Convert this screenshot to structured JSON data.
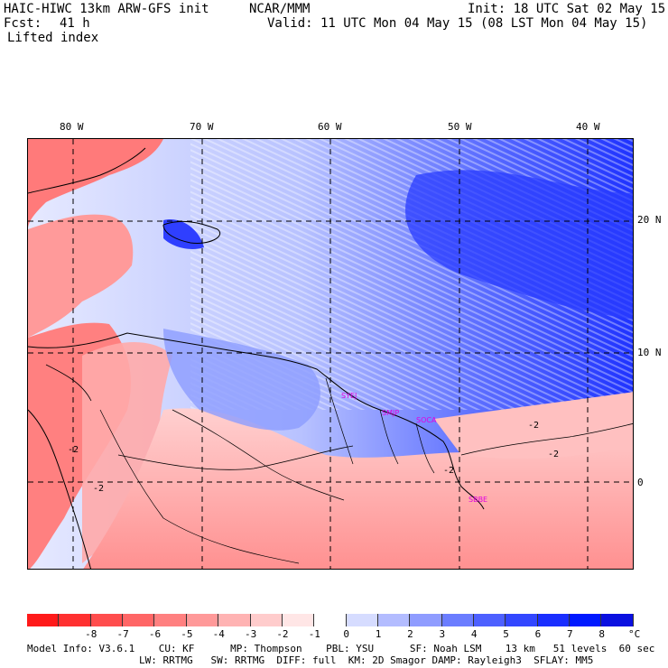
{
  "header": {
    "model": "HAIC-HIWC 13km ARW-GFS init",
    "agency": "NCAR/MMM",
    "init": "Init: 18 UTC Sat 02 May 15",
    "fcst_label": "Fcst:",
    "fcst_value": "41 h",
    "valid": "Valid: 11 UTC Mon 04 May 15 (08 LST Mon 04 May 15)",
    "field": "Lifted index"
  },
  "axes": {
    "lon_labels": [
      "80 W",
      "70 W",
      "60 W",
      "50 W",
      "40 W"
    ],
    "lat_labels": [
      "20 N",
      "10 N",
      "0"
    ]
  },
  "stations": [
    "SYEJ",
    "SMJP",
    "SOCA",
    "SBBE"
  ],
  "contour_labels": [
    "-2",
    "-2",
    "-2",
    "-2",
    "-2"
  ],
  "colorbar": {
    "values": [
      "-8",
      "-7",
      "-6",
      "-5",
      "-4",
      "-3",
      "-2",
      "-1",
      "0",
      "1",
      "2",
      "3",
      "4",
      "5",
      "6",
      "7",
      "8"
    ],
    "unit": "°C",
    "colors": [
      "#ff1a1a",
      "#ff3030",
      "#ff4d4d",
      "#ff6666",
      "#ff8080",
      "#ff9999",
      "#ffb3b3",
      "#ffcccc",
      "#ffe6e6",
      "#ffffff",
      "#d6dcff",
      "#b3bcff",
      "#8f9cff",
      "#6b7dff",
      "#4d60ff",
      "#3347ff",
      "#1a2eff",
      "#0019ff",
      "#0a10e0"
    ]
  },
  "footer": {
    "line1": "Model Info: V3.6.1    CU: KF      MP: Thompson    PBL: YSU      SF: Noah LSM    13 km   51 levels  60 sec",
    "line2": "LW: RRTMG   SW: RRTMG  DIFF: full  KM: 2D Smagor DAMP: Rayleigh3  SFLAY: MM5"
  }
}
